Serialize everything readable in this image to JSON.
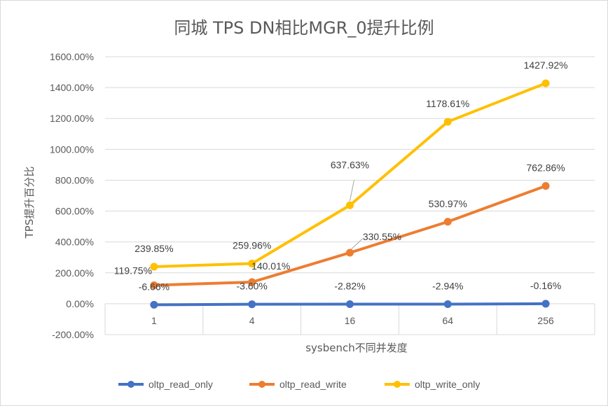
{
  "chart_data": {
    "type": "line",
    "title": "同城 TPS DN相比MGR_0提升比例",
    "xlabel": "sysbench不同并发度",
    "ylabel": "TPS提升百分比",
    "categories": [
      "1",
      "4",
      "16",
      "64",
      "256"
    ],
    "ylim": [
      -200,
      1600
    ],
    "yticks": [
      -200,
      0,
      200,
      400,
      600,
      800,
      1000,
      1200,
      1400,
      1600
    ],
    "ytick_labels": [
      "-200.00%",
      "0.00%",
      "200.00%",
      "400.00%",
      "600.00%",
      "800.00%",
      "1000.00%",
      "1200.00%",
      "1400.00%",
      "1600.00%"
    ],
    "grid": "vertical category gridlines",
    "legend_position": "bottom",
    "series": [
      {
        "name": "oltp_read_only",
        "color": "#4472C4",
        "values": [
          -6.66,
          -3.6,
          -2.82,
          -2.94,
          -0.16
        ],
        "labels": [
          "-6.66%",
          "-3.60%",
          "-2.82%",
          "-2.94%",
          "-0.16%"
        ]
      },
      {
        "name": "oltp_read_write",
        "color": "#ED7D31",
        "values": [
          119.75,
          140.01,
          330.55,
          530.97,
          762.86
        ],
        "labels": [
          "119.75%",
          "140.01%",
          "330.55%",
          "530.97%",
          "762.86%"
        ]
      },
      {
        "name": "oltp_write_only",
        "color": "#FFC000",
        "values": [
          239.85,
          259.96,
          637.63,
          1178.61,
          1427.92
        ],
        "labels": [
          "239.85%",
          "259.96%",
          "637.63%",
          "1178.61%",
          "1427.92%"
        ]
      }
    ]
  }
}
